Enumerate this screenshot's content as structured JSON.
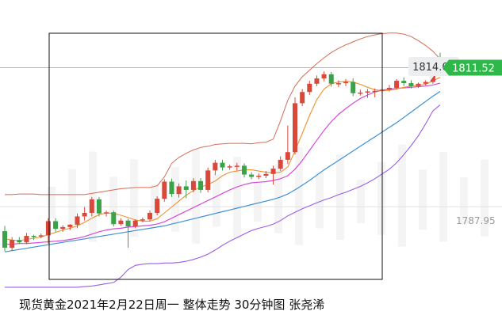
{
  "caption": "现货黄金2021年2月22日周一 整体走势  30分钟图  张尧浠",
  "chart_data": {
    "type": "candlestick",
    "title": "现货黄金2021年2月22日周一 整体走势  30分钟图  张尧浠",
    "timeframe": "30分钟",
    "ylim": [
      1772,
      1823
    ],
    "price_labels": {
      "high_tag": "1814.07",
      "current_price": "1811.52",
      "right_axis_level": "1787.95"
    },
    "colors": {
      "up": "#d9493a",
      "down": "#3aa34a",
      "upper_band": "#d96a55",
      "lower_band": "#9b5de5",
      "ma_fast": "#f0902c",
      "ma_mid": "#d64bd6",
      "ma_slow": "#3f8fd6",
      "current_price_bg": "#2fb84a",
      "reference_line": "#9bd18a",
      "frame": "#111111"
    },
    "candles": [
      [
        1783.8,
        1784.7,
        1780.4,
        1781.0
      ],
      [
        1781.0,
        1782.8,
        1780.5,
        1782.3
      ],
      [
        1782.3,
        1782.8,
        1781.6,
        1781.9
      ],
      [
        1781.9,
        1783.5,
        1781.6,
        1783.0
      ],
      [
        1783.0,
        1783.2,
        1782.3,
        1782.9
      ],
      [
        1782.9,
        1783.4,
        1782.6,
        1783.1
      ],
      [
        1783.1,
        1786.0,
        1781.7,
        1785.5
      ],
      [
        1785.5,
        1786.0,
        1783.7,
        1784.2
      ],
      [
        1784.2,
        1784.8,
        1783.7,
        1784.5
      ],
      [
        1784.5,
        1785.0,
        1784.0,
        1784.9
      ],
      [
        1784.9,
        1786.8,
        1784.3,
        1786.3
      ],
      [
        1786.3,
        1787.9,
        1785.6,
        1786.9
      ],
      [
        1786.9,
        1789.6,
        1786.3,
        1789.2
      ],
      [
        1789.2,
        1789.6,
        1786.3,
        1786.8
      ],
      [
        1786.8,
        1787.3,
        1786.3,
        1787.0
      ],
      [
        1787.0,
        1787.3,
        1784.6,
        1785.0
      ],
      [
        1785.0,
        1786.0,
        1784.7,
        1785.6
      ],
      [
        1785.6,
        1785.9,
        1781.0,
        1784.6
      ],
      [
        1784.6,
        1785.8,
        1784.3,
        1785.6
      ],
      [
        1785.6,
        1786.1,
        1785.3,
        1785.8
      ],
      [
        1785.8,
        1787.3,
        1785.5,
        1786.9
      ],
      [
        1786.9,
        1789.7,
        1786.5,
        1789.3
      ],
      [
        1789.3,
        1792.6,
        1788.8,
        1792.2
      ],
      [
        1792.2,
        1792.7,
        1789.6,
        1790.1
      ],
      [
        1790.1,
        1791.9,
        1789.5,
        1791.4
      ],
      [
        1791.4,
        1792.4,
        1789.4,
        1790.8
      ],
      [
        1790.8,
        1792.8,
        1790.4,
        1792.3
      ],
      [
        1792.3,
        1792.8,
        1790.3,
        1790.8
      ],
      [
        1790.8,
        1794.6,
        1790.4,
        1794.1
      ],
      [
        1794.1,
        1795.9,
        1793.3,
        1795.4
      ],
      [
        1795.4,
        1795.9,
        1794.1,
        1794.6
      ],
      [
        1794.6,
        1795.1,
        1794.2,
        1794.8
      ],
      [
        1794.8,
        1795.4,
        1794.1,
        1794.9
      ],
      [
        1794.9,
        1795.3,
        1792.9,
        1793.4
      ],
      [
        1793.4,
        1793.8,
        1792.6,
        1793.0
      ],
      [
        1793.0,
        1793.6,
        1792.6,
        1793.2
      ],
      [
        1793.2,
        1794.0,
        1792.8,
        1793.5
      ],
      [
        1793.5,
        1794.9,
        1791.7,
        1794.4
      ],
      [
        1794.4,
        1796.5,
        1794.0,
        1795.9
      ],
      [
        1795.9,
        1801.7,
        1795.2,
        1797.2
      ],
      [
        1797.2,
        1806.5,
        1796.8,
        1805.5
      ],
      [
        1805.5,
        1807.9,
        1805.0,
        1807.4
      ],
      [
        1807.4,
        1809.3,
        1806.9,
        1808.8
      ],
      [
        1808.8,
        1810.2,
        1808.4,
        1809.7
      ],
      [
        1809.7,
        1810.9,
        1809.2,
        1810.4
      ],
      [
        1810.4,
        1810.8,
        1808.3,
        1808.8
      ],
      [
        1808.8,
        1809.4,
        1808.2,
        1808.9
      ],
      [
        1808.9,
        1809.6,
        1808.4,
        1809.1
      ],
      [
        1809.1,
        1809.7,
        1806.7,
        1807.2
      ],
      [
        1807.2,
        1807.8,
        1806.8,
        1807.3
      ],
      [
        1807.3,
        1807.9,
        1806.4,
        1807.5
      ],
      [
        1807.5,
        1808.0,
        1806.5,
        1807.6
      ],
      [
        1807.6,
        1808.1,
        1807.3,
        1807.8
      ],
      [
        1807.8,
        1808.6,
        1807.5,
        1808.1
      ],
      [
        1808.1,
        1809.6,
        1807.8,
        1809.3
      ],
      [
        1809.3,
        1809.9,
        1808.4,
        1808.9
      ],
      [
        1808.9,
        1809.4,
        1808.0,
        1808.4
      ],
      [
        1808.4,
        1809.0,
        1808.1,
        1808.8
      ],
      [
        1808.8,
        1809.4,
        1808.5,
        1809.1
      ],
      [
        1809.1,
        1812.6,
        1808.8,
        1812.1
      ],
      [
        1812.1,
        1814.07,
        1811.1,
        1811.5
      ]
    ],
    "bollinger_upper": [
      1790.0,
      1790.0,
      1790.1,
      1790.1,
      1790.1,
      1790.0,
      1790.0,
      1790.0,
      1790.0,
      1790.0,
      1790.0,
      1790.0,
      1790.2,
      1790.4,
      1790.6,
      1790.8,
      1791.0,
      1791.1,
      1791.2,
      1791.2,
      1791.2,
      1791.5,
      1793.0,
      1795.3,
      1796.3,
      1797.0,
      1797.6,
      1798.0,
      1798.2,
      1798.5,
      1798.6,
      1798.7,
      1798.7,
      1798.7,
      1798.6,
      1798.8,
      1798.9,
      1799.4,
      1802.5,
      1806.0,
      1808.4,
      1810.0,
      1811.1,
      1812.2,
      1813.2,
      1814.1,
      1814.8,
      1815.4,
      1815.9,
      1816.4,
      1816.8,
      1817.1,
      1817.3,
      1817.4,
      1817.4,
      1817.2,
      1816.8,
      1816.1,
      1815.3,
      1814.3,
      1813.0
    ],
    "bollinger_lower": [
      1774.3,
      1774.3,
      1774.3,
      1774.3,
      1774.3,
      1774.3,
      1774.3,
      1774.3,
      1774.3,
      1774.3,
      1774.3,
      1774.4,
      1774.5,
      1774.7,
      1774.9,
      1775.1,
      1776.0,
      1777.3,
      1778.0,
      1778.2,
      1778.3,
      1778.3,
      1778.4,
      1778.4,
      1778.5,
      1778.7,
      1779.0,
      1779.4,
      1779.9,
      1780.6,
      1781.4,
      1782.1,
      1782.7,
      1783.3,
      1783.9,
      1784.3,
      1784.6,
      1785.0,
      1785.6,
      1786.4,
      1787.0,
      1787.6,
      1788.1,
      1788.6,
      1789.1,
      1789.5,
      1790.0,
      1790.4,
      1790.9,
      1791.4,
      1792.0,
      1792.7,
      1793.5,
      1794.3,
      1795.4,
      1796.8,
      1798.3,
      1800.0,
      1802.0,
      1804.2,
      1805.2
    ],
    "ma_fast": [
      1782.5,
      1782.3,
      1782.2,
      1782.4,
      1782.6,
      1782.8,
      1783.2,
      1783.6,
      1784.0,
      1784.3,
      1784.7,
      1785.3,
      1786.0,
      1786.6,
      1786.9,
      1786.8,
      1786.5,
      1786.1,
      1785.7,
      1785.5,
      1785.5,
      1785.9,
      1786.9,
      1787.9,
      1788.9,
      1789.9,
      1790.7,
      1791.3,
      1791.7,
      1792.3,
      1793.2,
      1793.8,
      1794.0,
      1794.2,
      1794.2,
      1794.0,
      1793.8,
      1793.7,
      1793.8,
      1794.7,
      1797.4,
      1800.4,
      1803.4,
      1806.1,
      1807.9,
      1808.8,
      1809.1,
      1809.2,
      1809.1,
      1808.7,
      1808.2,
      1807.8,
      1807.6,
      1807.7,
      1807.9,
      1808.2,
      1808.4,
      1808.5,
      1808.7,
      1809.3,
      1809.9
    ],
    "ma_mid": [
      1781.6,
      1781.6,
      1781.7,
      1781.7,
      1781.8,
      1781.9,
      1782.0,
      1782.1,
      1782.2,
      1782.4,
      1782.6,
      1782.9,
      1783.3,
      1783.7,
      1784.0,
      1784.2,
      1784.3,
      1784.5,
      1784.6,
      1784.7,
      1784.8,
      1785.0,
      1785.4,
      1786.0,
      1786.6,
      1787.2,
      1787.8,
      1788.4,
      1789.0,
      1789.6,
      1790.2,
      1790.8,
      1791.3,
      1791.7,
      1792.0,
      1792.1,
      1792.2,
      1792.4,
      1792.7,
      1793.2,
      1794.3,
      1795.8,
      1797.5,
      1799.2,
      1800.9,
      1802.4,
      1803.6,
      1804.6,
      1805.5,
      1806.3,
      1806.9,
      1807.4,
      1807.7,
      1807.9,
      1808.0,
      1808.1,
      1808.2,
      1808.3,
      1808.4,
      1808.6,
      1808.9
    ],
    "ma_slow": [
      1780.3,
      1780.5,
      1780.7,
      1780.9,
      1781.1,
      1781.3,
      1781.5,
      1781.7,
      1781.9,
      1782.1,
      1782.3,
      1782.5,
      1782.7,
      1782.9,
      1783.1,
      1783.3,
      1783.5,
      1783.7,
      1783.9,
      1784.1,
      1784.3,
      1784.5,
      1784.7,
      1785.0,
      1785.3,
      1785.6,
      1785.9,
      1786.2,
      1786.5,
      1786.8,
      1787.1,
      1787.4,
      1787.7,
      1788.0,
      1788.3,
      1788.6,
      1788.9,
      1789.2,
      1789.6,
      1790.1,
      1790.8,
      1791.6,
      1792.4,
      1793.3,
      1794.2,
      1795.0,
      1795.8,
      1796.6,
      1797.4,
      1798.2,
      1799.0,
      1799.8,
      1800.6,
      1801.4,
      1802.2,
      1803.1,
      1804.0,
      1804.9,
      1805.8,
      1806.7,
      1807.5
    ]
  }
}
